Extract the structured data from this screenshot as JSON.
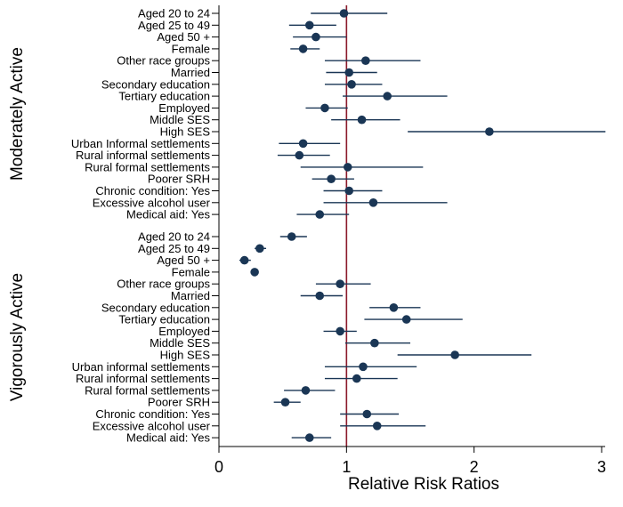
{
  "chart_data": {
    "type": "forest",
    "xlabel": "Relative Risk Ratios",
    "xlim": [
      0,
      3.05
    ],
    "xticks": [
      0,
      1,
      2,
      3
    ],
    "xtick_labels": [
      "0",
      "1",
      "2",
      "3"
    ],
    "reference_line": 1,
    "reference_color": "#8b1a2b",
    "marker_color": "#1a3655",
    "groups": [
      {
        "name": "Moderately Active",
        "rows": [
          {
            "label": "Aged 20 to 24",
            "rr": 0.98,
            "lo": 0.72,
            "hi": 1.32
          },
          {
            "label": "Aged 25 to 49",
            "rr": 0.71,
            "lo": 0.55,
            "hi": 0.92
          },
          {
            "label": "Aged 50 +",
            "rr": 0.76,
            "lo": 0.58,
            "hi": 1.0
          },
          {
            "label": "Female",
            "rr": 0.66,
            "lo": 0.56,
            "hi": 0.79
          },
          {
            "label": "Other race groups",
            "rr": 1.15,
            "lo": 0.83,
            "hi": 1.58
          },
          {
            "label": "Married",
            "rr": 1.02,
            "lo": 0.84,
            "hi": 1.24
          },
          {
            "label": "Secondary education",
            "rr": 1.04,
            "lo": 0.83,
            "hi": 1.28
          },
          {
            "label": "Tertiary education",
            "rr": 1.32,
            "lo": 0.97,
            "hi": 1.79
          },
          {
            "label": "Employed",
            "rr": 0.83,
            "lo": 0.68,
            "hi": 1.01
          },
          {
            "label": "Middle SES",
            "rr": 1.12,
            "lo": 0.88,
            "hi": 1.42
          },
          {
            "label": "High SES",
            "rr": 2.12,
            "lo": 1.48,
            "hi": 3.03
          },
          {
            "label": "Urban Informal settlements",
            "rr": 0.66,
            "lo": 0.47,
            "hi": 0.95
          },
          {
            "label": "Rural informal settlements",
            "rr": 0.63,
            "lo": 0.46,
            "hi": 0.87
          },
          {
            "label": "Rural formal settlements",
            "rr": 1.01,
            "lo": 0.64,
            "hi": 1.6
          },
          {
            "label": "Poorer SRH",
            "rr": 0.88,
            "lo": 0.73,
            "hi": 1.06
          },
          {
            "label": "Chronic condition: Yes",
            "rr": 1.02,
            "lo": 0.82,
            "hi": 1.28
          },
          {
            "label": "Excessive alcohol user",
            "rr": 1.21,
            "lo": 0.82,
            "hi": 1.79
          },
          {
            "label": "Medical aid: Yes",
            "rr": 0.79,
            "lo": 0.61,
            "hi": 1.02
          }
        ]
      },
      {
        "name": "Vigorously Active",
        "rows": [
          {
            "label": "Aged 20 to 24",
            "rr": 0.57,
            "lo": 0.48,
            "hi": 0.69
          },
          {
            "label": "Aged 25 to 49",
            "rr": 0.32,
            "lo": 0.28,
            "hi": 0.37
          },
          {
            "label": "Aged 50 +",
            "rr": 0.2,
            "lo": 0.16,
            "hi": 0.25
          },
          {
            "label": "Female",
            "rr": 0.28,
            "lo": 0.25,
            "hi": 0.31
          },
          {
            "label": "Other race groups",
            "rr": 0.95,
            "lo": 0.76,
            "hi": 1.19
          },
          {
            "label": "Married",
            "rr": 0.79,
            "lo": 0.64,
            "hi": 0.97
          },
          {
            "label": "Secondary education",
            "rr": 1.37,
            "lo": 1.18,
            "hi": 1.58
          },
          {
            "label": "Tertiary education",
            "rr": 1.47,
            "lo": 1.14,
            "hi": 1.91
          },
          {
            "label": "Employed",
            "rr": 0.95,
            "lo": 0.82,
            "hi": 1.08
          },
          {
            "label": "Middle SES",
            "rr": 1.22,
            "lo": 0.99,
            "hi": 1.5
          },
          {
            "label": "High SES",
            "rr": 1.85,
            "lo": 1.4,
            "hi": 2.45
          },
          {
            "label": "Urban informal settlements",
            "rr": 1.13,
            "lo": 0.83,
            "hi": 1.55
          },
          {
            "label": "Rural informal settlements",
            "rr": 1.08,
            "lo": 0.83,
            "hi": 1.4
          },
          {
            "label": "Rural formal settlements",
            "rr": 0.68,
            "lo": 0.51,
            "hi": 0.91
          },
          {
            "label": "Poorer SRH",
            "rr": 0.52,
            "lo": 0.43,
            "hi": 0.64
          },
          {
            "label": "Chronic condition: Yes",
            "rr": 1.16,
            "lo": 0.95,
            "hi": 1.41
          },
          {
            "label": "Excessive alcohol user",
            "rr": 1.24,
            "lo": 0.95,
            "hi": 1.62
          },
          {
            "label": "Medical aid: Yes",
            "rr": 0.71,
            "lo": 0.57,
            "hi": 0.88
          }
        ]
      }
    ]
  }
}
